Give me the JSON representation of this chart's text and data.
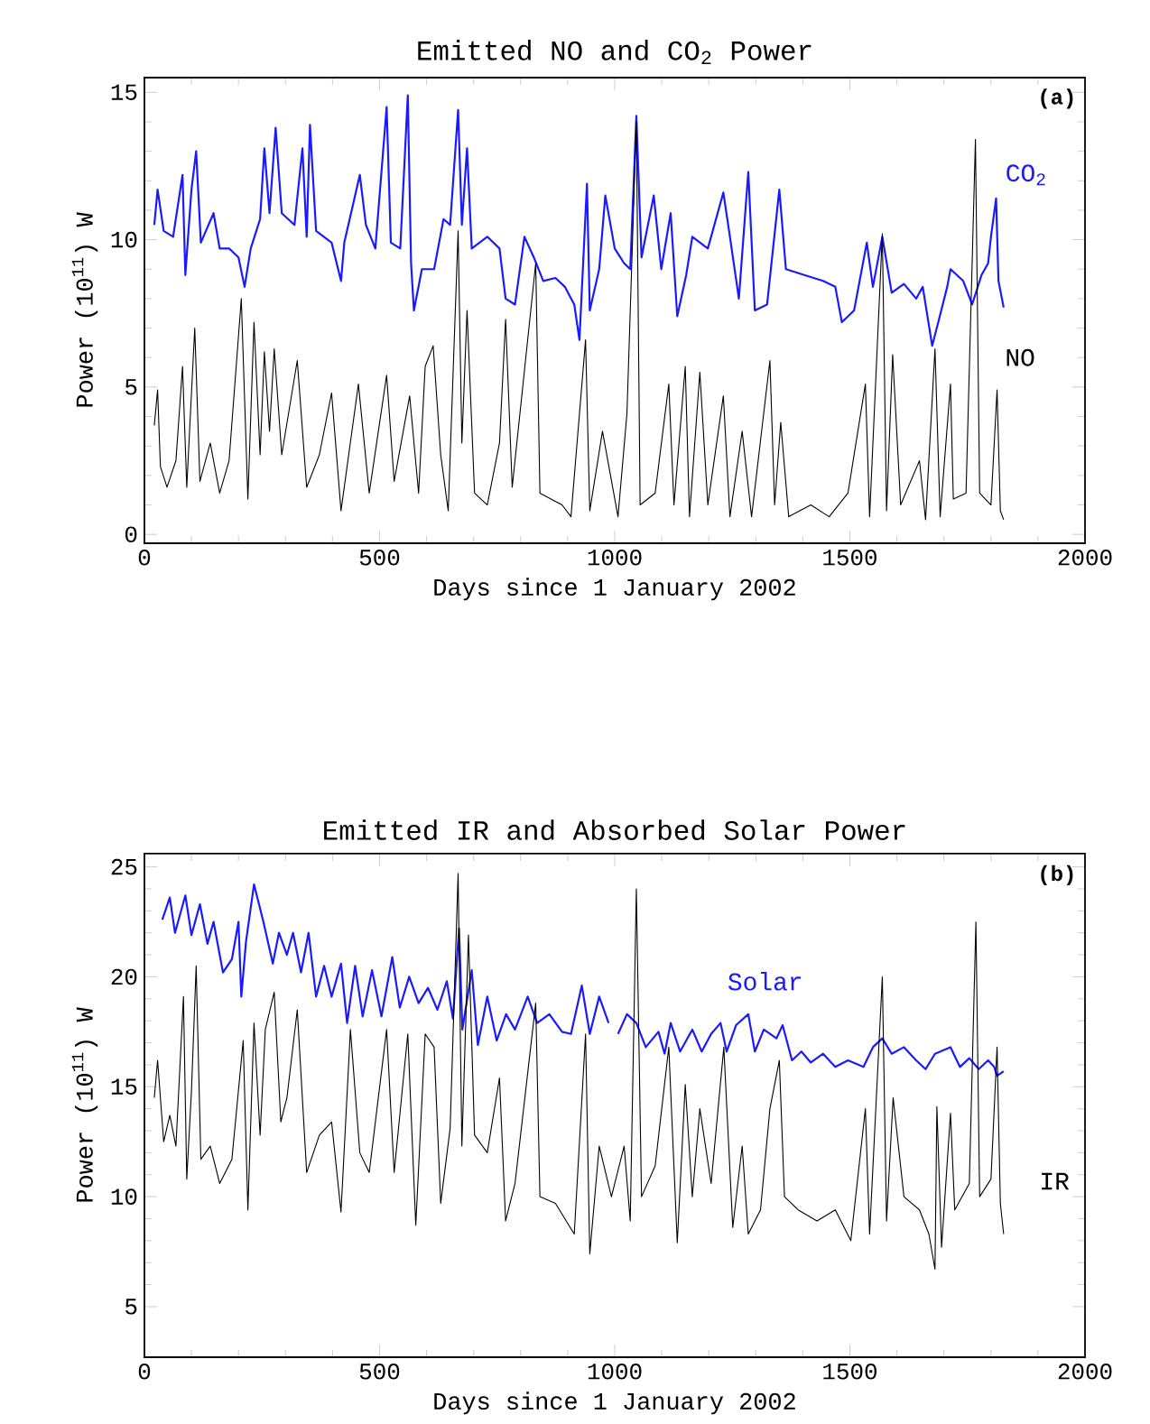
{
  "chart_data": [
    {
      "type": "line",
      "title": "Emitted NO and CO$_{2}$ Power",
      "xlabel": "Days since 1 January 2002",
      "ylabel": "Power (10$^{11}$) W",
      "xlim": [
        0,
        2000
      ],
      "ylim": [
        -0.3,
        15.5
      ],
      "xticks": [
        0,
        500,
        1000,
        1500,
        2000
      ],
      "yticks": [
        0,
        5,
        10,
        15
      ],
      "annotations": [
        "(a)"
      ],
      "series": [
        {
          "name": "CO$_{2}$",
          "color": "#1a1aff",
          "x": [
            21,
            28,
            41,
            61,
            81,
            87,
            100,
            110,
            120,
            147,
            160,
            180,
            200,
            213,
            226,
            246,
            255,
            266,
            279,
            292,
            319,
            336,
            345,
            352,
            365,
            398,
            418,
            425,
            458,
            471,
            491,
            515,
            524,
            544,
            560,
            567,
            573,
            590,
            616,
            636,
            650,
            667,
            675,
            686,
            696,
            729,
            755,
            768,
            788,
            808,
            828,
            848,
            874,
            894,
            914,
            925,
            941,
            947,
            967,
            980,
            1000,
            1020,
            1033,
            1046,
            1057,
            1083,
            1099,
            1119,
            1133,
            1152,
            1165,
            1198,
            1231,
            1245,
            1264,
            1284,
            1298,
            1324,
            1350,
            1364,
            1403,
            1443,
            1469,
            1483,
            1509,
            1536,
            1549,
            1569,
            1589,
            1615,
            1641,
            1655,
            1675,
            1688,
            1707,
            1714,
            1741,
            1760,
            1780,
            1794,
            1800,
            1811,
            1816,
            1827
          ],
          "values": [
            10.5,
            11.7,
            10.3,
            10.1,
            12.2,
            8.8,
            11.7,
            13.0,
            9.9,
            10.9,
            9.7,
            9.7,
            9.4,
            8.4,
            9.7,
            10.7,
            13.1,
            10.9,
            13.8,
            10.9,
            10.5,
            13.1,
            10.1,
            13.9,
            10.3,
            9.9,
            8.6,
            9.9,
            12.2,
            10.5,
            9.7,
            14.5,
            9.9,
            9.7,
            14.9,
            9.2,
            7.6,
            9.0,
            9.0,
            10.7,
            10.5,
            14.4,
            10.5,
            13.1,
            9.7,
            10.1,
            9.7,
            8.0,
            7.8,
            10.1,
            9.4,
            8.6,
            8.7,
            8.4,
            7.8,
            6.6,
            11.9,
            7.6,
            9.0,
            11.5,
            9.7,
            9.2,
            9.0,
            14.2,
            9.4,
            11.5,
            9.0,
            10.9,
            7.4,
            8.8,
            10.1,
            9.7,
            11.6,
            10.1,
            8.0,
            12.3,
            7.6,
            7.8,
            11.7,
            9.0,
            8.8,
            8.6,
            8.4,
            7.2,
            7.6,
            9.9,
            8.4,
            10.1,
            8.2,
            8.5,
            8.0,
            8.4,
            6.4,
            7.2,
            8.4,
            9.0,
            8.6,
            7.8,
            8.8,
            9.2,
            10.1,
            11.4,
            8.6,
            7.7
          ]
        },
        {
          "name": "NO",
          "color": "#000000",
          "x": [
            21,
            28,
            34,
            48,
            67,
            81,
            90,
            107,
            118,
            140,
            160,
            180,
            206,
            220,
            233,
            246,
            255,
            266,
            276,
            292,
            325,
            345,
            372,
            398,
            418,
            455,
            478,
            515,
            531,
            564,
            583,
            597,
            614,
            630,
            646,
            667,
            675,
            686,
            702,
            729,
            755,
            768,
            782,
            832,
            841,
            888,
            907,
            938,
            947,
            974,
            1007,
            1026,
            1046,
            1054,
            1086,
            1115,
            1126,
            1150,
            1159,
            1181,
            1198,
            1231,
            1245,
            1271,
            1291,
            1330,
            1340,
            1353,
            1370,
            1417,
            1456,
            1496,
            1533,
            1542,
            1569,
            1578,
            1591,
            1608,
            1648,
            1661,
            1681,
            1692,
            1714,
            1720,
            1747,
            1767,
            1776,
            1800,
            1813,
            1820,
            1827
          ],
          "values": [
            3.7,
            4.9,
            2.3,
            1.6,
            2.5,
            5.7,
            1.6,
            7.0,
            1.8,
            3.1,
            1.4,
            2.5,
            8.0,
            1.2,
            7.2,
            2.7,
            6.2,
            3.5,
            6.3,
            2.7,
            5.9,
            1.6,
            2.7,
            4.8,
            0.8,
            5.1,
            1.4,
            5.4,
            1.8,
            4.7,
            1.4,
            5.7,
            6.4,
            2.7,
            0.8,
            10.3,
            3.1,
            7.6,
            1.4,
            1.0,
            3.1,
            7.3,
            1.6,
            9.2,
            1.4,
            1.0,
            0.6,
            6.6,
            0.8,
            3.5,
            0.6,
            4.1,
            14.0,
            1.0,
            1.4,
            5.1,
            1.0,
            5.7,
            0.6,
            5.5,
            1.0,
            4.7,
            0.6,
            3.5,
            0.6,
            5.9,
            1.0,
            3.8,
            0.6,
            1.0,
            0.6,
            1.4,
            5.1,
            0.6,
            10.2,
            0.8,
            6.1,
            1.0,
            2.5,
            0.5,
            6.3,
            0.6,
            5.1,
            1.2,
            1.4,
            13.4,
            1.4,
            1.0,
            4.9,
            0.8,
            0.5
          ]
        }
      ]
    },
    {
      "type": "line",
      "title": "Emitted IR and Absorbed Solar Power",
      "xlabel": "Days since 1 January 2002",
      "ylabel": "Power (10$^{11}$) W",
      "xlim": [
        0,
        2000
      ],
      "ylim": [
        2.7,
        25.6
      ],
      "xticks": [
        0,
        500,
        1000,
        1500,
        2000
      ],
      "yticks": [
        5,
        10,
        15,
        20,
        25
      ],
      "annotations": [
        "(b)"
      ],
      "series": [
        {
          "name": "Solar",
          "color": "#1a1aff",
          "x": [
            38,
            54,
            65,
            87,
            100,
            118,
            134,
            147,
            167,
            186,
            200,
            206,
            216,
            233,
            253,
            273,
            286,
            303,
            316,
            333,
            349,
            365,
            382,
            398,
            418,
            431,
            448,
            464,
            484,
            504,
            527,
            543,
            563,
            583,
            603,
            623,
            643,
            656,
            669,
            676,
            696,
            709,
            729,
            749,
            769,
            788,
            815,
            835,
            861,
            888,
            907,
            930,
            947,
            967,
            987,
            995,
            1007,
            1026,
            1046,
            1066,
            1093,
            1106,
            1119,
            1139,
            1165,
            1185,
            1205,
            1225,
            1238,
            1258,
            1284,
            1298,
            1317,
            1344,
            1357,
            1377,
            1397,
            1417,
            1443,
            1469,
            1496,
            1529,
            1549,
            1569,
            1589,
            1615,
            1641,
            1661,
            1681,
            1714,
            1734,
            1754,
            1774,
            1794,
            1807,
            1813,
            1827
          ],
          "values": [
            22.6,
            23.6,
            22.0,
            23.7,
            21.9,
            23.3,
            21.5,
            22.5,
            20.2,
            20.8,
            22.5,
            19.1,
            21.6,
            24.2,
            22.5,
            20.6,
            22.0,
            21.0,
            22.0,
            20.2,
            22.0,
            19.1,
            20.5,
            19.1,
            20.6,
            17.9,
            20.5,
            18.2,
            20.3,
            18.2,
            20.9,
            18.6,
            20.0,
            18.8,
            19.5,
            18.5,
            19.8,
            18.1,
            22.2,
            17.6,
            20.3,
            16.9,
            19.1,
            17.1,
            18.3,
            17.6,
            19.1,
            17.9,
            18.3,
            17.5,
            17.4,
            19.6,
            17.4,
            19.1,
            17.9,
            null,
            17.4,
            18.3,
            17.9,
            16.8,
            17.5,
            16.5,
            17.9,
            16.6,
            17.6,
            16.6,
            17.4,
            17.9,
            16.6,
            17.8,
            18.3,
            16.6,
            17.6,
            17.2,
            17.8,
            16.2,
            16.6,
            16.1,
            16.5,
            15.9,
            16.2,
            15.9,
            16.8,
            17.2,
            16.5,
            16.8,
            16.2,
            15.8,
            16.5,
            16.8,
            15.9,
            16.3,
            15.8,
            16.2,
            15.9,
            15.5,
            15.7
          ]
        },
        {
          "name": "IR",
          "color": "#000000",
          "x": [
            21,
            28,
            41,
            54,
            67,
            83,
            90,
            100,
            110,
            120,
            140,
            160,
            186,
            210,
            220,
            233,
            246,
            257,
            276,
            290,
            303,
            325,
            345,
            372,
            398,
            418,
            438,
            458,
            478,
            515,
            531,
            560,
            577,
            597,
            616,
            630,
            650,
            667,
            675,
            689,
            702,
            729,
            755,
            768,
            788,
            832,
            841,
            874,
            914,
            938,
            947,
            967,
            993,
            1020,
            1033,
            1046,
            1057,
            1086,
            1115,
            1133,
            1150,
            1165,
            1181,
            1205,
            1232,
            1251,
            1271,
            1284,
            1310,
            1330,
            1350,
            1361,
            1390,
            1430,
            1469,
            1502,
            1533,
            1542,
            1569,
            1578,
            1592,
            1615,
            1648,
            1668,
            1681,
            1685,
            1695,
            1714,
            1723,
            1754,
            1768,
            1776,
            1800,
            1813,
            1820,
            1827
          ],
          "values": [
            14.5,
            16.2,
            12.5,
            13.7,
            12.3,
            19.1,
            10.8,
            14.8,
            20.5,
            11.7,
            12.3,
            10.6,
            11.7,
            17.1,
            9.4,
            17.9,
            12.8,
            17.6,
            19.3,
            13.4,
            14.5,
            18.5,
            11.1,
            12.8,
            13.4,
            9.3,
            17.6,
            12.0,
            11.1,
            17.6,
            11.1,
            17.4,
            8.7,
            17.4,
            16.8,
            9.7,
            13.1,
            24.7,
            12.3,
            21.9,
            12.8,
            12.0,
            15.4,
            8.9,
            10.6,
            18.8,
            10.0,
            9.7,
            8.3,
            17.4,
            7.4,
            12.3,
            10.0,
            12.3,
            8.9,
            24.0,
            10.0,
            11.4,
            16.8,
            7.9,
            15.1,
            10.0,
            14.0,
            10.6,
            16.8,
            8.6,
            12.3,
            8.3,
            9.4,
            14.0,
            16.2,
            10.0,
            9.4,
            8.9,
            9.4,
            8.0,
            14.0,
            8.3,
            20.0,
            8.9,
            14.5,
            10.0,
            9.4,
            8.3,
            6.7,
            14.1,
            7.7,
            13.8,
            9.4,
            10.6,
            22.5,
            10.0,
            10.8,
            16.8,
            9.7,
            8.3
          ]
        }
      ]
    }
  ]
}
